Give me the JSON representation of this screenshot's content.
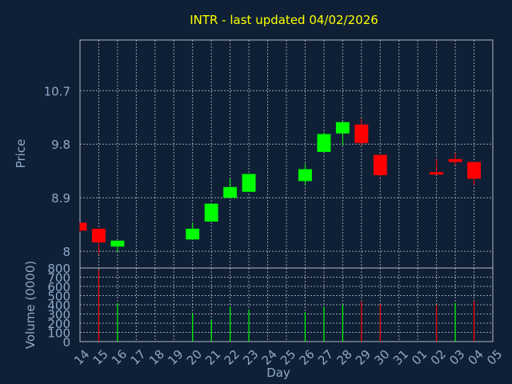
{
  "chart_data": [
    {
      "type": "candlestick",
      "title": "INTR - last updated 04/02/2026",
      "ylabel": "Price",
      "y_ticks": [
        "8",
        "8.9",
        "9.8",
        "10.7"
      ],
      "ylim": [
        7.72,
        11.55
      ],
      "grid": true,
      "colors": {
        "up": "#00ff00",
        "down": "#ff0000"
      },
      "candles": [
        {
          "day": "14",
          "open": 8.48,
          "high": 8.48,
          "low": 8.33,
          "close": 8.35
        },
        {
          "day": "15",
          "open": 8.38,
          "high": 8.38,
          "low": 7.95,
          "close": 8.15
        },
        {
          "day": "16",
          "open": 8.08,
          "high": 8.18,
          "low": 7.98,
          "close": 8.18
        },
        {
          "day": "20",
          "open": 8.2,
          "high": 8.48,
          "low": 8.2,
          "close": 8.38
        },
        {
          "day": "21",
          "open": 8.5,
          "high": 8.8,
          "low": 8.5,
          "close": 8.8
        },
        {
          "day": "22",
          "open": 8.9,
          "high": 9.22,
          "low": 8.9,
          "close": 9.08
        },
        {
          "day": "23",
          "open": 9.0,
          "high": 9.3,
          "low": 9.0,
          "close": 9.3
        },
        {
          "day": "26",
          "open": 9.18,
          "high": 9.47,
          "low": 9.12,
          "close": 9.38
        },
        {
          "day": "27",
          "open": 9.67,
          "high": 10.0,
          "low": 9.67,
          "close": 9.97
        },
        {
          "day": "28",
          "open": 9.98,
          "high": 10.18,
          "low": 9.78,
          "close": 10.17
        },
        {
          "day": "29",
          "open": 10.13,
          "high": 10.23,
          "low": 9.78,
          "close": 9.82
        },
        {
          "day": "30",
          "open": 9.62,
          "high": 9.62,
          "low": 9.25,
          "close": 9.28
        },
        {
          "day": "02",
          "open": 9.33,
          "high": 9.55,
          "low": 9.3,
          "close": 9.3
        },
        {
          "day": "03",
          "open": 9.55,
          "high": 9.65,
          "low": 9.45,
          "close": 9.5
        },
        {
          "day": "04",
          "open": 9.5,
          "high": 9.5,
          "low": 9.12,
          "close": 9.22
        }
      ]
    },
    {
      "type": "bar",
      "ylabel": "Volume (0000)",
      "xlabel": "Day",
      "y_ticks": [
        "0",
        "100",
        "200",
        "300",
        "400",
        "500",
        "600",
        "700",
        "800"
      ],
      "ylim": [
        0,
        800
      ],
      "categories": [
        "14",
        "15",
        "16",
        "17",
        "18",
        "19",
        "20",
        "21",
        "22",
        "23",
        "24",
        "25",
        "26",
        "27",
        "28",
        "29",
        "30",
        "31",
        "01",
        "02",
        "03",
        "04",
        "05"
      ],
      "volumes": [
        {
          "day": "15",
          "value": 780,
          "direction": "down"
        },
        {
          "day": "16",
          "value": 420,
          "direction": "up"
        },
        {
          "day": "20",
          "value": 310,
          "direction": "up"
        },
        {
          "day": "21",
          "value": 240,
          "direction": "up"
        },
        {
          "day": "22",
          "value": 380,
          "direction": "up"
        },
        {
          "day": "23",
          "value": 350,
          "direction": "up"
        },
        {
          "day": "26",
          "value": 320,
          "direction": "up"
        },
        {
          "day": "27",
          "value": 380,
          "direction": "up"
        },
        {
          "day": "28",
          "value": 400,
          "direction": "up"
        },
        {
          "day": "29",
          "value": 440,
          "direction": "down"
        },
        {
          "day": "30",
          "value": 410,
          "direction": "down"
        },
        {
          "day": "02",
          "value": 400,
          "direction": "down"
        },
        {
          "day": "03",
          "value": 420,
          "direction": "up"
        },
        {
          "day": "04",
          "value": 440,
          "direction": "down"
        }
      ]
    }
  ]
}
